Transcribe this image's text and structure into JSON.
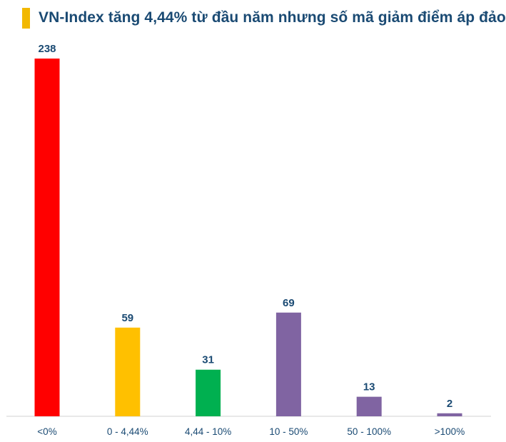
{
  "title": "VN-Index tăng 4,44% từ đầu năm nhưng số mã giảm điểm áp đảo",
  "colors": {
    "title_marker": "#f2b800",
    "title_text": "#1a4a73",
    "axis": "#d0d0d0"
  },
  "chart_data": {
    "type": "bar",
    "title": "VN-Index tăng 4,44% từ đầu năm nhưng số mã giảm điểm áp đảo",
    "categories": [
      "<0%",
      "0 - 4,44%",
      "4,44 - 10%",
      "10 - 50%",
      "50 - 100%",
      ">100%"
    ],
    "values": [
      238,
      59,
      31,
      69,
      13,
      2
    ],
    "bar_colors": [
      "#ff0000",
      "#ffc000",
      "#00b050",
      "#8064a2",
      "#8064a2",
      "#8064a2"
    ],
    "xlabel": "",
    "ylabel": "",
    "ylim": [
      0,
      238
    ],
    "grid": false,
    "legend": "none",
    "data_labels": true
  }
}
